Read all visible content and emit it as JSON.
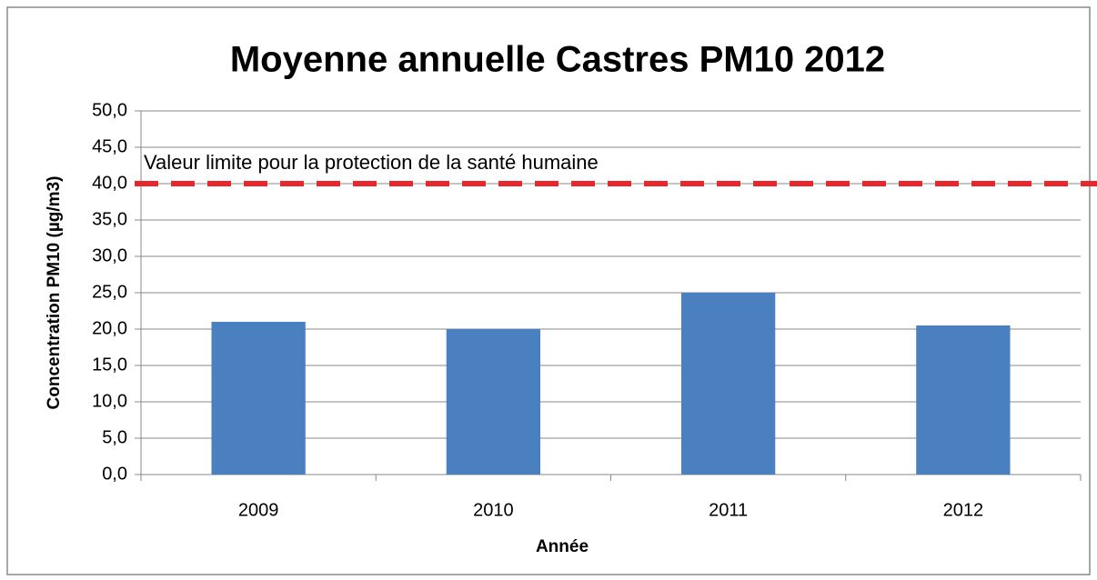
{
  "chart_data": {
    "type": "bar",
    "title": "Moyenne annuelle Castres PM10 2012",
    "x_label": "Année",
    "y_label": "Concentration PM10 (µg/m3)",
    "categories": [
      "2009",
      "2010",
      "2011",
      "2012"
    ],
    "values": [
      21,
      20,
      25,
      20.5
    ],
    "color": "#4a80c0",
    "ylim": [
      0,
      50
    ],
    "yticks": [
      {
        "value": 0,
        "label": "0,0"
      },
      {
        "value": 5,
        "label": "5,0"
      },
      {
        "value": 10,
        "label": "10,0"
      },
      {
        "value": 15,
        "label": "15,0"
      },
      {
        "value": 20,
        "label": "20,0"
      },
      {
        "value": 25,
        "label": "25,0"
      },
      {
        "value": 30,
        "label": "30,0"
      },
      {
        "value": 35,
        "label": "35,0"
      },
      {
        "value": 40,
        "label": "40,0"
      },
      {
        "value": 45,
        "label": "45,0"
      },
      {
        "value": 50,
        "label": "50,0"
      }
    ],
    "grid": true,
    "reference_line": {
      "value": 40,
      "label": "Valeur limite pour la protection de la santé humaine",
      "color": "#e8262b"
    }
  }
}
